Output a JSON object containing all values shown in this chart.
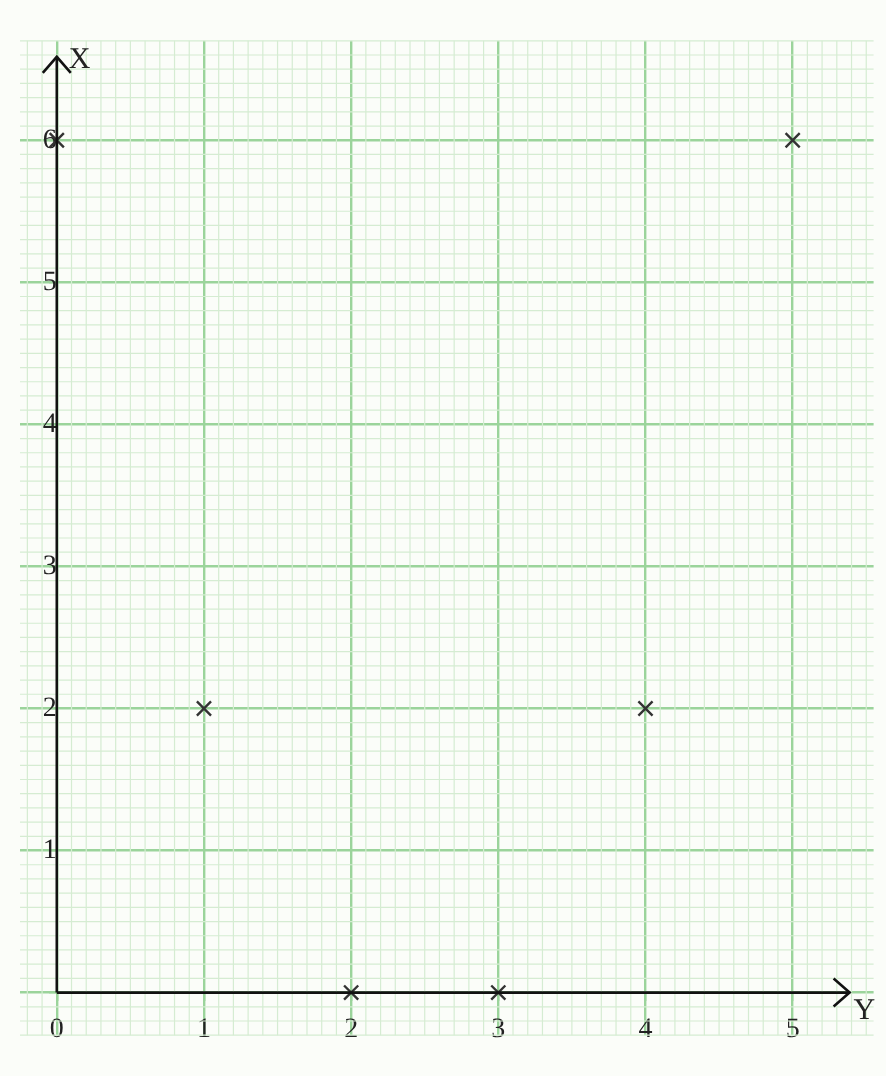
{
  "chart_data": {
    "type": "scatter",
    "xlabel": "Y",
    "ylabel": "X",
    "x": [
      0,
      1,
      2,
      3,
      4,
      5
    ],
    "values": [
      6,
      2,
      0,
      0,
      2,
      6
    ],
    "color": "#333333",
    "marker": "cross",
    "xlim": [
      -0.25,
      5.55
    ],
    "ylim": [
      -0.3,
      6.7
    ],
    "xticks": [
      0,
      1,
      2,
      3,
      4,
      5
    ],
    "yticks": [
      {
        "value": 0,
        "label": null
      },
      1,
      2,
      3,
      4,
      5,
      6
    ],
    "grid": true,
    "legend": false
  }
}
